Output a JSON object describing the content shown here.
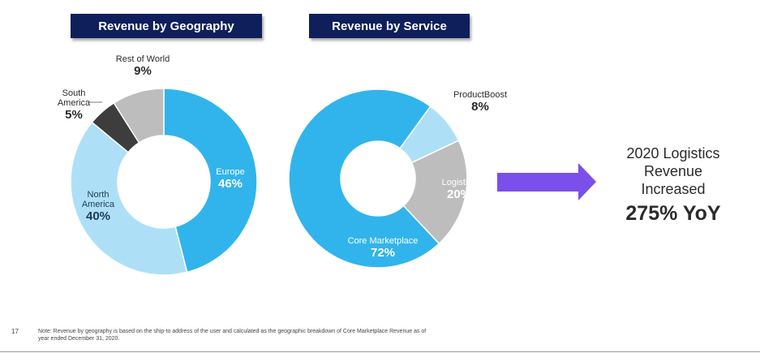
{
  "headers": {
    "geography": "Revenue by Geography",
    "service": "Revenue by Service"
  },
  "chart_data": [
    {
      "type": "pie",
      "style": "donut",
      "title": "Revenue by Geography",
      "categories": [
        "Europe",
        "North America",
        "South America",
        "Rest of World"
      ],
      "values": [
        46,
        40,
        5,
        9
      ],
      "value_labels": [
        "46%",
        "40%",
        "5%",
        "9%"
      ],
      "label_lines": [
        [
          "Europe"
        ],
        [
          "North",
          "America"
        ],
        [
          "South",
          "America"
        ],
        [
          "Rest of World"
        ]
      ],
      "colors": [
        "#31b4ec",
        "#ade0f7",
        "#3d3d3d",
        "#bdbdbd"
      ]
    },
    {
      "type": "pie",
      "style": "donut",
      "title": "Revenue by Service",
      "categories": [
        "ProductBoost",
        "Logistics",
        "Core Marketplace"
      ],
      "values": [
        8,
        20,
        72
      ],
      "value_labels": [
        "8%",
        "20%",
        "72%"
      ],
      "label_lines": [
        [
          "ProductBoost"
        ],
        [
          "Logistics"
        ],
        [
          "Core Marketplace"
        ]
      ],
      "colors": [
        "#ade0f7",
        "#bdbdbd",
        "#31b4ec"
      ]
    }
  ],
  "arrow_color": "#7b4fe9",
  "callout": {
    "line1": "2020 Logistics",
    "line2": "Revenue",
    "line3": "Increased",
    "highlight": "275% YoY"
  },
  "footer": {
    "page_number": "17",
    "note_line1": "Note: Revenue by geography is based on the ship-to address of the user and calculated as the geographic breakdown of Core Marketplace Revenue as of",
    "note_line2": "year ended December 31, 2020."
  }
}
